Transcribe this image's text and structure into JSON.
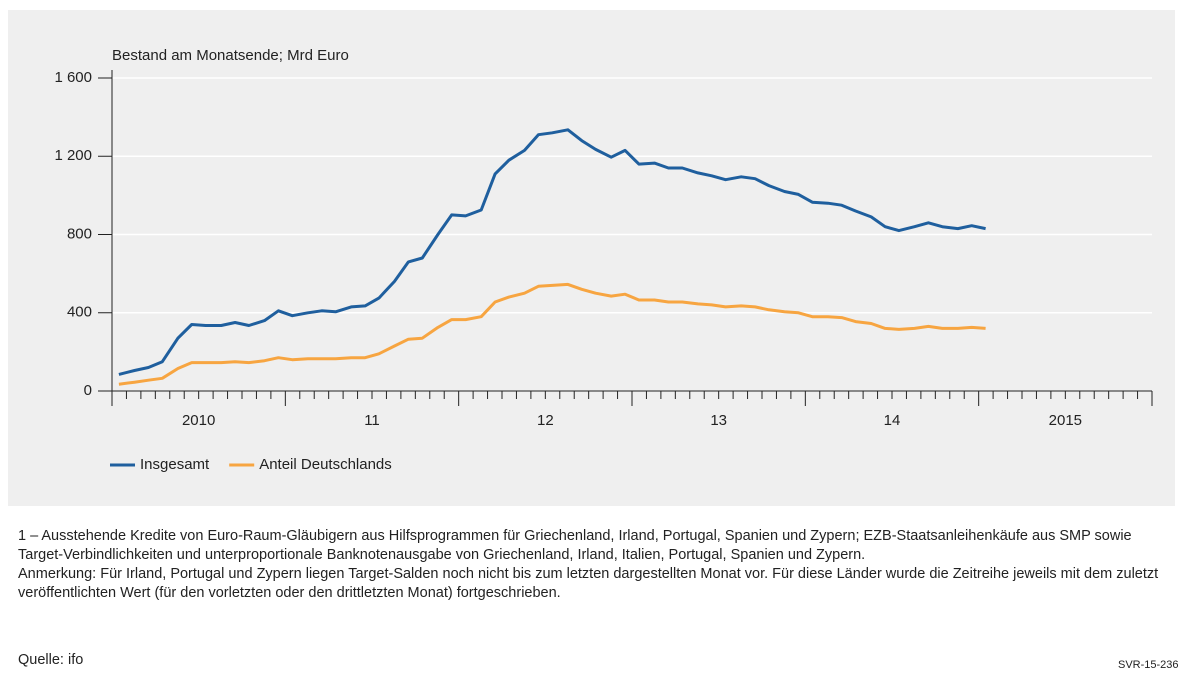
{
  "chart_data": {
    "type": "line",
    "y_axis_label": "Bestand am Monatsende; Mrd Euro",
    "x": [
      2010.04,
      2010.13,
      2010.21,
      2010.29,
      2010.38,
      2010.46,
      2010.54,
      2010.63,
      2010.71,
      2010.79,
      2010.88,
      2010.96,
      2011.04,
      2011.13,
      2011.21,
      2011.29,
      2011.38,
      2011.46,
      2011.54,
      2011.63,
      2011.71,
      2011.79,
      2011.88,
      2011.96,
      2012.04,
      2012.13,
      2012.21,
      2012.29,
      2012.38,
      2012.46,
      2012.54,
      2012.63,
      2012.71,
      2012.79,
      2012.88,
      2012.96,
      2013.04,
      2013.13,
      2013.21,
      2013.29,
      2013.38,
      2013.46,
      2013.54,
      2013.63,
      2013.71,
      2013.79,
      2013.88,
      2013.96,
      2014.04,
      2014.13,
      2014.21,
      2014.29,
      2014.38,
      2014.46,
      2014.54,
      2014.63,
      2014.71,
      2014.79,
      2014.88,
      2014.96,
      2015.04
    ],
    "series": [
      {
        "name": "Insgesamt",
        "color": "#1f5f9e",
        "values": [
          85,
          105,
          120,
          150,
          270,
          340,
          335,
          335,
          350,
          335,
          360,
          410,
          385,
          400,
          410,
          405,
          430,
          435,
          475,
          560,
          660,
          680,
          800,
          900,
          895,
          925,
          1110,
          1180,
          1230,
          1310,
          1320,
          1335,
          1280,
          1235,
          1195,
          1230,
          1160,
          1165,
          1140,
          1140,
          1115,
          1100,
          1080,
          1095,
          1085,
          1050,
          1020,
          1005,
          965,
          960,
          950,
          920,
          890,
          840,
          820,
          840,
          860,
          840,
          830,
          845,
          830
        ]
      },
      {
        "name": "Anteil Deutschlands",
        "color": "#f7a541",
        "values": [
          35,
          45,
          55,
          65,
          115,
          145,
          145,
          145,
          150,
          145,
          155,
          170,
          160,
          165,
          165,
          165,
          170,
          170,
          190,
          230,
          265,
          270,
          325,
          365,
          365,
          380,
          455,
          480,
          500,
          535,
          540,
          545,
          520,
          500,
          485,
          495,
          465,
          465,
          455,
          455,
          445,
          440,
          430,
          435,
          430,
          415,
          405,
          400,
          380,
          380,
          375,
          355,
          345,
          320,
          315,
          320,
          330,
          320,
          320,
          325,
          320
        ]
      }
    ],
    "xlim": [
      2010,
      2016
    ],
    "xticks": [
      {
        "value": 2010.5,
        "label": "2010"
      },
      {
        "value": 2011.5,
        "label": "11"
      },
      {
        "value": 2012.5,
        "label": "12"
      },
      {
        "value": 2013.5,
        "label": "13"
      },
      {
        "value": 2014.5,
        "label": "14"
      },
      {
        "value": 2015.5,
        "label": "2015"
      }
    ],
    "ylim": [
      0,
      1600
    ],
    "yticks": [
      0,
      400,
      800,
      {
        "value": 1200,
        "label": "1 200"
      },
      {
        "value": 1600,
        "label": "1 600"
      }
    ],
    "grid": true,
    "notes": [
      "1 – Ausstehende Kredite von Euro-Raum-Gläubigern aus Hilfsprogrammen für Griechenland, Irland, Portugal, Spanien und Zypern; EZB-Staatsanleihenkäufe aus SMP sowie Target-Verbindlichkeiten und unterproportionale Banknotenausgabe von Griechenland, Irland, Italien, Portugal, Spanien und Zypern.",
      "Anmerkung: Für Irland, Portugal und Zypern liegen Target-Salden noch nicht bis zum letzten dargestellten Monat vor. Für diese Länder wurde die Zeitreihe jeweils mit dem zuletzt veröffentlichten Wert (für den vorletzten oder den drittletzten Monat) fortgeschrieben."
    ],
    "source": "Quelle: ifo",
    "code": "SVR-15-236"
  }
}
